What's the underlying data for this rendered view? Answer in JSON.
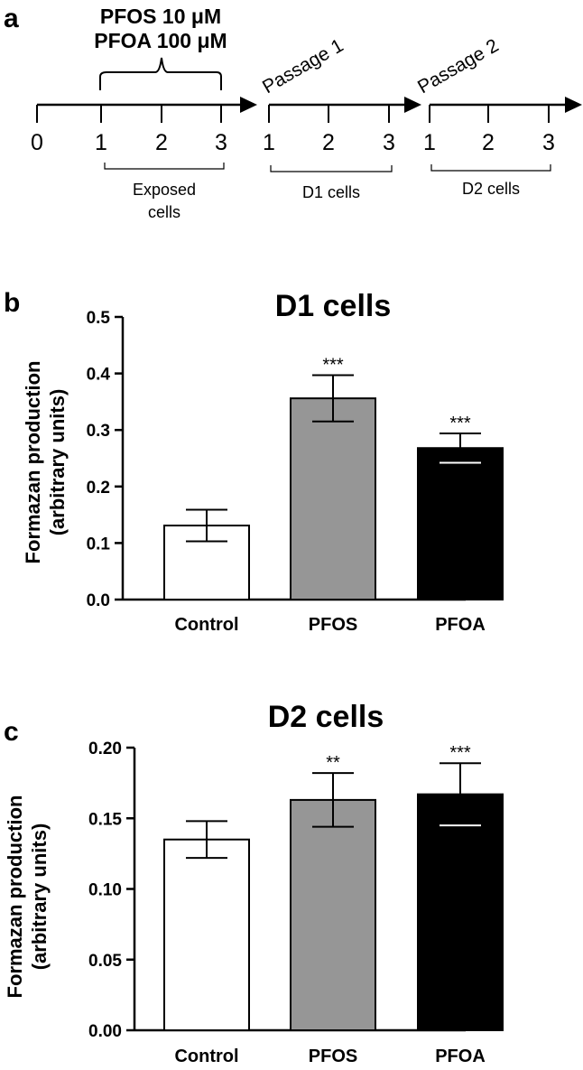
{
  "panels": {
    "a": "a",
    "b": "b",
    "c": "c"
  },
  "timeline": {
    "treatment_line1": "PFOS 10 μM",
    "treatment_line2": "PFOA 100 μM",
    "passage1": "Passage 1",
    "passage2": "Passage 2",
    "ticks_seg1": [
      "0",
      "1",
      "2",
      "3"
    ],
    "ticks_seg2": [
      "1",
      "2",
      "3"
    ],
    "ticks_seg3": [
      "1",
      "2",
      "3"
    ],
    "group1_line1": "Exposed",
    "group1_line2": "cells",
    "group2": "D1 cells",
    "group3": "D2 cells"
  },
  "chart_data": [
    {
      "type": "bar",
      "title": "D1 cells",
      "ylabel_line1": "Formazan production",
      "ylabel_line2": "(arbitrary units)",
      "xlabel": "",
      "categories": [
        "Control",
        "PFOS",
        "PFOA"
      ],
      "values": [
        0.131,
        0.356,
        0.268
      ],
      "errors": [
        0.028,
        0.041,
        0.026
      ],
      "significance": [
        "",
        "***",
        "***"
      ],
      "bar_colors": [
        "#ffffff",
        "#969696",
        "#000000"
      ],
      "ylim": [
        0,
        0.5
      ],
      "yticks": [
        0.0,
        0.1,
        0.2,
        0.3,
        0.4,
        0.5
      ],
      "ytick_labels": [
        "0.0",
        "0.1",
        "0.2",
        "0.3",
        "0.4",
        "0.5"
      ]
    },
    {
      "type": "bar",
      "title": "D2 cells",
      "ylabel_line1": "Formazan production",
      "ylabel_line2": "(arbitrary units)",
      "xlabel": "",
      "categories": [
        "Control",
        "PFOS",
        "PFOA"
      ],
      "values": [
        0.135,
        0.163,
        0.167
      ],
      "errors": [
        0.013,
        0.019,
        0.022
      ],
      "significance": [
        "",
        "**",
        "***"
      ],
      "bar_colors": [
        "#ffffff",
        "#969696",
        "#000000"
      ],
      "ylim": [
        0,
        0.2
      ],
      "yticks": [
        0.0,
        0.05,
        0.1,
        0.15,
        0.2
      ],
      "ytick_labels": [
        "0.00",
        "0.05",
        "0.10",
        "0.15",
        "0.20"
      ]
    }
  ]
}
